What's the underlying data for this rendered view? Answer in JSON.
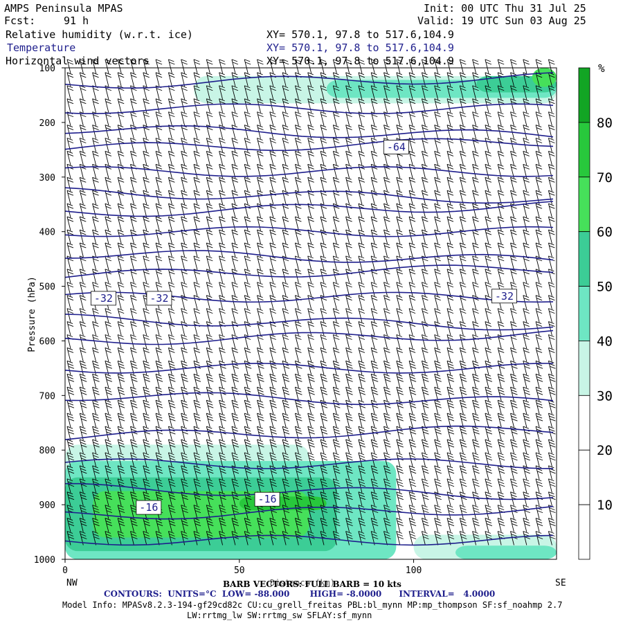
{
  "header": {
    "model": "AMPS Peninsula MPAS",
    "fcst_label": "Fcst:",
    "fcst_value": "91 h",
    "init": "Init: 00 UTC Thu 31 Jul 25",
    "valid": "Valid: 19 UTC Sun 03 Aug 25",
    "fields": [
      {
        "name": "Relative humidity (w.r.t. ice)",
        "xy": "XY= 570.1, 97.8 to 517.6,104.9",
        "color": "#000000"
      },
      {
        "name": "Temperature",
        "xy": "XY= 570.1, 97.8 to 517.6,104.9",
        "color": "#1e1e8c"
      },
      {
        "name": "Horizontal wind vectors",
        "xy": "XY= 570.1, 97.8 to 517.6,104.9",
        "color": "#000000"
      }
    ]
  },
  "footer": {
    "barb_note": "BARB VECTORS: FULL BARB = 10 kts",
    "distance_label": "Distance (km)",
    "contours": "CONTOURS:  UNITS=°C  LOW= -88.000       HIGH= -8.0000      INTERVAL=   4.0000",
    "model_info_1": "Model Info: MPASv8.2.3-194-gf29cd82c CU:cu_grell_freitas PBL:bl_mynn MP:mp_thompson SF:sf_noahmp 2.7",
    "model_info_2": "LW:rrtmg_lw SW:rrtmg_sw SFLAY:sf_mynn"
  },
  "colors": {
    "temperature_contour": "#1e1e8c",
    "rh_scale": [
      "#ffffff",
      "#ffffff",
      "#ffffff",
      "#c8f5e6",
      "#6ee6c3",
      "#3ccd96",
      "#46e05a",
      "#28c83c",
      "#12a524"
    ]
  },
  "chart_data": {
    "type": "heatmap",
    "xlabel": "Distance (km)",
    "ylabel": "Pressure (hPa)",
    "x_ticks": [
      0,
      50,
      100
    ],
    "x_end_labels": {
      "left": "NW",
      "right": "SE"
    },
    "xlim": [
      0,
      141
    ],
    "y_ticks": [
      100,
      200,
      300,
      400,
      500,
      600,
      700,
      800,
      900,
      1000
    ],
    "ylim": [
      1000,
      100
    ],
    "colorbar": {
      "unit": "%",
      "ticks": [
        10,
        20,
        30,
        40,
        50,
        60,
        70,
        80
      ],
      "range": [
        0,
        90
      ]
    },
    "temperature_contour_labels": [
      {
        "text": "-64",
        "x": 95,
        "p": 245
      },
      {
        "text": "-32",
        "x": 11,
        "p": 522
      },
      {
        "text": "-32",
        "x": 27,
        "p": 522
      },
      {
        "text": "-32",
        "x": 126,
        "p": 518
      },
      {
        "text": "-16",
        "x": 24,
        "p": 905
      },
      {
        "text": "-16",
        "x": 58,
        "p": 890
      }
    ],
    "temperature_contour_pressures": [
      130,
      175,
      212,
      248,
      290,
      328,
      365,
      400,
      440,
      480,
      520,
      560,
      600,
      650,
      700,
      775,
      825,
      870,
      920,
      965
    ]
  }
}
